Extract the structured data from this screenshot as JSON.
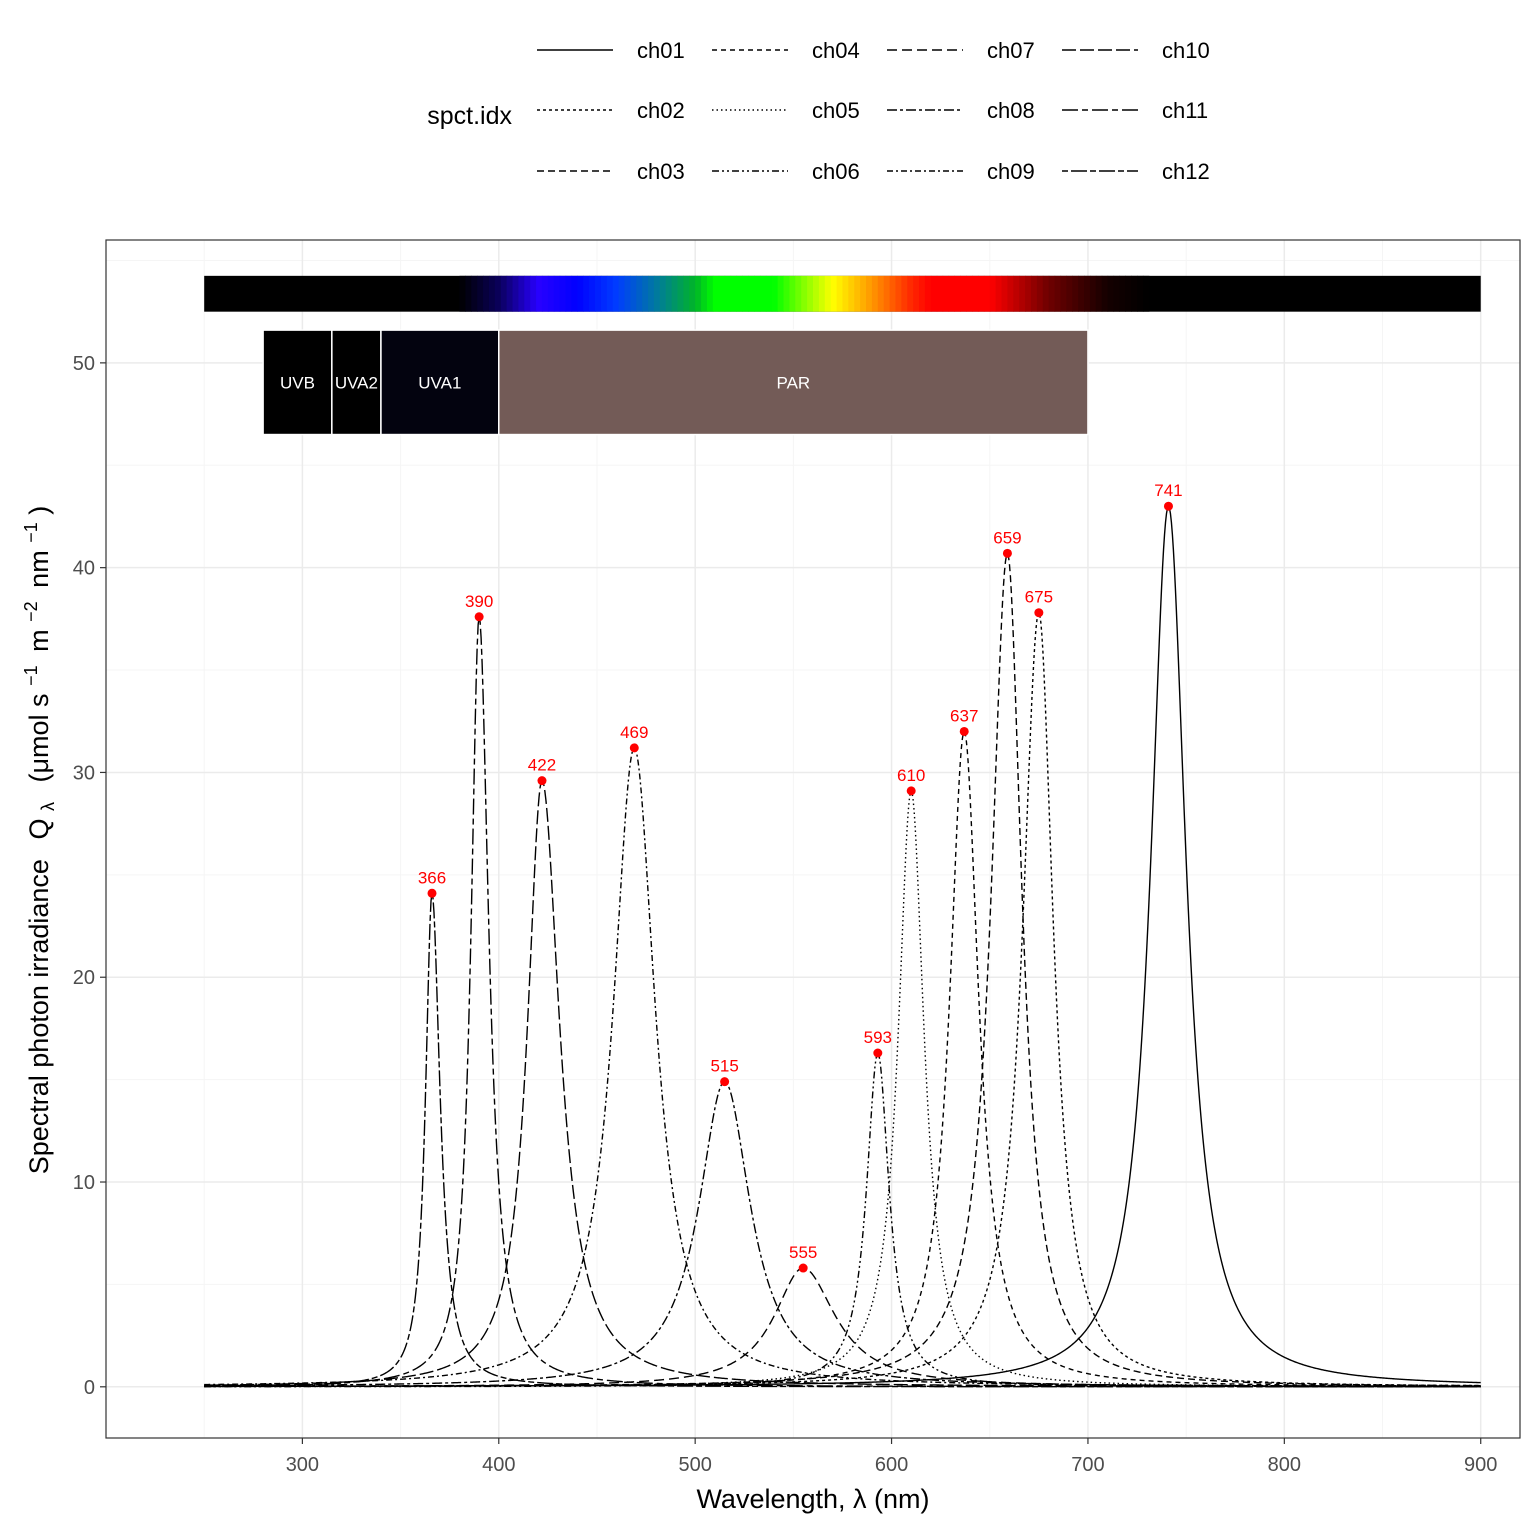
{
  "chart_data": {
    "type": "line",
    "xlabel": "Wavelength, λ (nm)",
    "ylabel_parts": {
      "main": "Spectral photon irradiance",
      "symbol": "Q",
      "symbol_sub": "λ",
      "unit_open": "(μmol s",
      "exp1": "−1",
      "unit_m": "m",
      "exp2": "−2",
      "unit_nm": "nm",
      "exp3": "−1",
      "unit_close": ")"
    },
    "xlim": [
      200,
      920
    ],
    "ylim": [
      -2.5,
      56
    ],
    "x_ticks": [
      300,
      400,
      500,
      600,
      700,
      800,
      900
    ],
    "y_ticks": [
      0,
      10,
      20,
      30,
      40,
      50
    ],
    "grid": true,
    "legend": {
      "title": "spct.idx",
      "position": "top"
    },
    "series": [
      {
        "name": "ch01",
        "peak_nm": 741,
        "peak_value": 43.0,
        "hw_left": 11,
        "hw_right": 11,
        "dash": ""
      },
      {
        "name": "ch02",
        "peak_nm": 675,
        "peak_value": 37.8,
        "hw_left": 10,
        "hw_right": 9,
        "dash": "3,3"
      },
      {
        "name": "ch03",
        "peak_nm": 659,
        "peak_value": 40.7,
        "hw_left": 10,
        "hw_right": 9,
        "dash": "7,4"
      },
      {
        "name": "ch04",
        "peak_nm": 637,
        "peak_value": 32.0,
        "hw_left": 9,
        "hw_right": 9,
        "dash": "5,4"
      },
      {
        "name": "ch05",
        "peak_nm": 610,
        "peak_value": 29.1,
        "hw_left": 8,
        "hw_right": 8,
        "dash": "1.5,3"
      },
      {
        "name": "ch06",
        "peak_nm": 593,
        "peak_value": 16.3,
        "hw_left": 7,
        "hw_right": 7,
        "dash": "7,3,2,3,2,3"
      },
      {
        "name": "ch07",
        "peak_nm": 555,
        "peak_value": 5.8,
        "hw_left": 18,
        "hw_right": 20,
        "dash": "10,5"
      },
      {
        "name": "ch08",
        "peak_nm": 515,
        "peak_value": 14.9,
        "hw_left": 16,
        "hw_right": 16,
        "dash": "10,3,3,3"
      },
      {
        "name": "ch09",
        "peak_nm": 469,
        "peak_value": 31.2,
        "hw_left": 13,
        "hw_right": 13,
        "dash": "6,3,2,3"
      },
      {
        "name": "ch10",
        "peak_nm": 422,
        "peak_value": 29.6,
        "hw_left": 9,
        "hw_right": 11,
        "dash": "14,4"
      },
      {
        "name": "ch11",
        "peak_nm": 390,
        "peak_value": 37.6,
        "hw_left": 5,
        "hw_right": 6,
        "dash": "16,4,6,4"
      },
      {
        "name": "ch12",
        "peak_nm": 366,
        "peak_value": 24.1,
        "hw_left": 4,
        "hw_right": 5,
        "dash": "6,3,16,3"
      }
    ],
    "peak_labels": [
      "366",
      "390",
      "422",
      "469",
      "515",
      "555",
      "593",
      "610",
      "637",
      "659",
      "675",
      "741"
    ],
    "wavebands": [
      {
        "label": "UVB",
        "x0": 280,
        "x1": 315,
        "color": "#000000"
      },
      {
        "label": "UVA2",
        "x0": 315,
        "x1": 340,
        "color": "#000000"
      },
      {
        "label": "UVA1",
        "x0": 340,
        "x1": 400,
        "color": "#03030f"
      },
      {
        "label": "PAR",
        "x0": 400,
        "x1": 700,
        "color": "#735b57"
      }
    ],
    "color_bar": {
      "x0": 250,
      "x1": 900
    },
    "colors": {
      "peak_marker": "#ff0000",
      "line": "#000000",
      "grid_major": "#ebebeb",
      "grid_minor": "#f5f5f5",
      "panel_border": "#333333"
    }
  }
}
